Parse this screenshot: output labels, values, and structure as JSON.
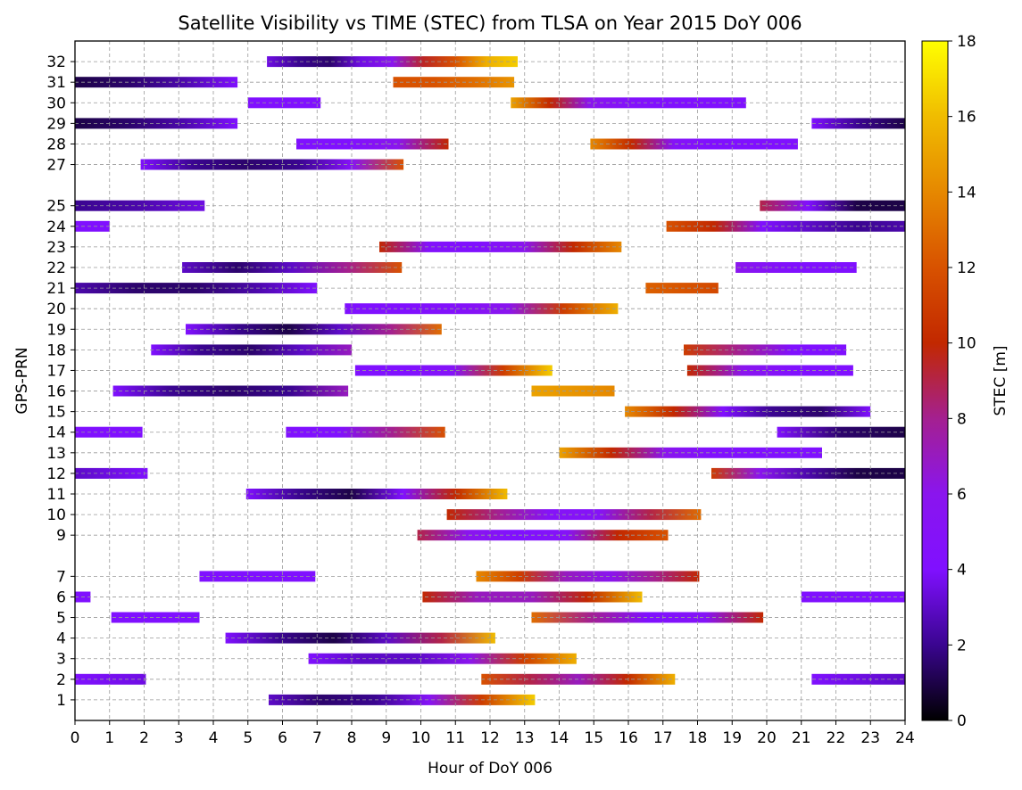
{
  "chart_data": {
    "type": "timeline",
    "title": "Satellite Visibility vs TIME (STEC) from TLSA on Year 2015 DoY 006",
    "xlabel": "Hour of DoY 006",
    "ylabel": "GPS-PRN",
    "xlim": [
      0,
      24
    ],
    "x_ticks": [
      "0",
      "1",
      "2",
      "3",
      "4",
      "5",
      "6",
      "7",
      "8",
      "9",
      "10",
      "11",
      "12",
      "13",
      "14",
      "15",
      "16",
      "17",
      "18",
      "19",
      "20",
      "21",
      "22",
      "23",
      "24"
    ],
    "y_ticks": [
      "1",
      "2",
      "3",
      "4",
      "5",
      "6",
      "7",
      "9",
      "10",
      "11",
      "12",
      "13",
      "14",
      "15",
      "16",
      "17",
      "18",
      "19",
      "20",
      "21",
      "22",
      "23",
      "24",
      "25",
      "27",
      "28",
      "29",
      "30",
      "31",
      "32"
    ],
    "grid": true,
    "colorbar": {
      "label": "STEC [m]",
      "range": [
        0,
        18
      ],
      "ticks": [
        "0",
        "2",
        "4",
        "6",
        "8",
        "10",
        "12",
        "14",
        "16",
        "18"
      ],
      "colormap": "gnuplot",
      "stops": [
        {
          "v": 0,
          "color": "#000000"
        },
        {
          "v": 2,
          "color": "#3a0590"
        },
        {
          "v": 4,
          "color": "#8010ff"
        },
        {
          "v": 6,
          "color": "#8a15ee"
        },
        {
          "v": 8,
          "color": "#a42090"
        },
        {
          "v": 10,
          "color": "#c22800"
        },
        {
          "v": 12,
          "color": "#d85200"
        },
        {
          "v": 14,
          "color": "#e68800"
        },
        {
          "v": 16,
          "color": "#f0bc00"
        },
        {
          "v": 18,
          "color": "#ffff00"
        }
      ]
    },
    "series": [
      {
        "prn": 32,
        "passes": [
          {
            "start": 5.55,
            "end": 12.8,
            "stec": [
              3.5,
              2.0,
              1.5,
              3.5,
              6.0,
              9.5,
              12.0,
              15.5,
              16.5
            ]
          }
        ]
      },
      {
        "prn": 31,
        "passes": [
          {
            "start": 0.0,
            "end": 4.7,
            "stec": [
              1.0,
              1.5,
              2.5,
              4.0
            ]
          },
          {
            "start": 9.2,
            "end": 12.7,
            "stec": [
              12.0,
              12.0,
              13.0,
              14.5
            ]
          }
        ]
      },
      {
        "prn": 30,
        "passes": [
          {
            "start": 5.0,
            "end": 7.1,
            "stec": [
              4.0,
              4.0
            ]
          },
          {
            "start": 12.6,
            "end": 19.4,
            "stec": [
              15.0,
              10.0,
              6.0,
              4.5,
              4.0,
              4.0,
              4.0
            ]
          }
        ]
      },
      {
        "prn": 29,
        "passes": [
          {
            "start": 0.0,
            "end": 4.7,
            "stec": [
              1.0,
              1.5,
              2.5,
              4.0
            ]
          },
          {
            "start": 21.3,
            "end": 24.0,
            "stec": [
              4.0,
              2.0,
              1.0
            ]
          }
        ]
      },
      {
        "prn": 28,
        "passes": [
          {
            "start": 6.4,
            "end": 10.8,
            "stec": [
              4.0,
              4.0,
              6.0,
              10.0
            ]
          },
          {
            "start": 14.9,
            "end": 20.9,
            "stec": [
              14.0,
              10.0,
              5.0,
              4.0,
              4.0,
              4.0
            ]
          }
        ]
      },
      {
        "prn": 27,
        "passes": [
          {
            "start": 1.9,
            "end": 9.5,
            "stec": [
              4.0,
              2.0,
              1.5,
              2.0,
              5.0,
              12.0
            ]
          }
        ]
      },
      {
        "prn": 25,
        "passes": [
          {
            "start": 0.0,
            "end": 3.75,
            "stec": [
              2.0,
              2.5,
              3.5
            ]
          },
          {
            "start": 19.8,
            "end": 24.0,
            "stec": [
              9.0,
              4.0,
              1.0,
              1.0
            ]
          }
        ]
      },
      {
        "prn": 24,
        "passes": [
          {
            "start": 0.0,
            "end": 1.0,
            "stec": [
              4.0,
              4.0
            ]
          },
          {
            "start": 17.1,
            "end": 24.0,
            "stec": [
              12.0,
              10.0,
              4.0,
              3.0,
              2.0,
              2.5
            ]
          }
        ]
      },
      {
        "prn": 23,
        "passes": [
          {
            "start": 8.8,
            "end": 15.8,
            "stec": [
              10.0,
              4.5,
              4.0,
              6.0,
              10.0,
              14.0
            ]
          }
        ]
      },
      {
        "prn": 22,
        "passes": [
          {
            "start": 3.1,
            "end": 9.45,
            "stec": [
              3.0,
              1.5,
              3.0,
              8.0,
              12.0
            ]
          },
          {
            "start": 19.1,
            "end": 22.6,
            "stec": [
              6.0,
              4.0,
              4.0
            ]
          }
        ]
      },
      {
        "prn": 21,
        "passes": [
          {
            "start": 0.0,
            "end": 7.0,
            "stec": [
              2.5,
              1.5,
              1.5,
              2.5,
              4.0
            ]
          },
          {
            "start": 16.5,
            "end": 18.6,
            "stec": [
              12.5,
              11.5
            ]
          }
        ]
      },
      {
        "prn": 20,
        "passes": [
          {
            "start": 7.8,
            "end": 15.7,
            "stec": [
              4.0,
              4.0,
              4.5,
              6.0,
              11.0,
              15.5
            ]
          }
        ]
      },
      {
        "prn": 19,
        "passes": [
          {
            "start": 3.2,
            "end": 10.6,
            "stec": [
              4.0,
              2.0,
              1.0,
              3.0,
              8.0,
              13.0
            ]
          }
        ]
      },
      {
        "prn": 18,
        "passes": [
          {
            "start": 2.2,
            "end": 8.0,
            "stec": [
              4.0,
              2.0,
              1.5,
              3.0,
              7.0
            ]
          },
          {
            "start": 17.6,
            "end": 22.3,
            "stec": [
              11.0,
              8.0,
              4.0,
              4.0
            ]
          }
        ]
      },
      {
        "prn": 17,
        "passes": [
          {
            "start": 8.1,
            "end": 13.8,
            "stec": [
              4.0,
              4.0,
              5.0,
              11.0,
              16.5
            ]
          },
          {
            "start": 17.7,
            "end": 22.5,
            "stec": [
              10.0,
              6.0,
              4.0,
              4.0
            ]
          }
        ]
      },
      {
        "prn": 16,
        "passes": [
          {
            "start": 1.1,
            "end": 7.9,
            "stec": [
              4.0,
              2.0,
              1.5,
              2.0,
              7.0
            ]
          },
          {
            "start": 13.2,
            "end": 15.6,
            "stec": [
              15.0,
              14.0
            ]
          }
        ]
      },
      {
        "prn": 15,
        "passes": [
          {
            "start": 15.9,
            "end": 23.0,
            "stec": [
              14.0,
              10.0,
              4.0,
              2.0,
              1.5,
              4.0
            ]
          }
        ]
      },
      {
        "prn": 14,
        "passes": [
          {
            "start": 0.0,
            "end": 1.95,
            "stec": [
              4.0,
              4.0
            ]
          },
          {
            "start": 6.1,
            "end": 10.7,
            "stec": [
              4.0,
              4.0,
              8.0,
              12.0
            ]
          },
          {
            "start": 20.3,
            "end": 24.0,
            "stec": [
              4.0,
              1.5,
              1.0
            ]
          }
        ]
      },
      {
        "prn": 13,
        "passes": [
          {
            "start": 14.0,
            "end": 21.6,
            "stec": [
              15.0,
              10.0,
              6.0,
              4.0,
              4.0,
              4.0
            ]
          }
        ]
      },
      {
        "prn": 12,
        "passes": [
          {
            "start": 0.0,
            "end": 2.1,
            "stec": [
              3.0,
              4.0
            ]
          },
          {
            "start": 18.4,
            "end": 24.0,
            "stec": [
              11.0,
              6.0,
              2.5,
              1.0,
              1.0
            ]
          }
        ]
      },
      {
        "prn": 11,
        "passes": [
          {
            "start": 4.95,
            "end": 12.5,
            "stec": [
              4.0,
              2.0,
              1.0,
              4.0,
              10.0,
              16.0
            ]
          }
        ]
      },
      {
        "prn": 10,
        "passes": [
          {
            "start": 10.75,
            "end": 18.1,
            "stec": [
              10.0,
              8.0,
              5.0,
              5.0,
              9.0,
              13.0
            ]
          }
        ]
      },
      {
        "prn": 9,
        "passes": [
          {
            "start": 9.9,
            "end": 17.15,
            "stec": [
              9.0,
              6.0,
              4.0,
              5.0,
              10.0,
              12.0
            ]
          }
        ]
      },
      {
        "prn": 7,
        "passes": [
          {
            "start": 3.6,
            "end": 6.95,
            "stec": [
              4.0,
              4.0,
              4.0
            ]
          },
          {
            "start": 11.6,
            "end": 18.05,
            "stec": [
              14.0,
              11.0,
              7.0,
              6.0,
              8.0,
              10.0
            ]
          }
        ]
      },
      {
        "prn": 6,
        "passes": [
          {
            "start": 0.0,
            "end": 0.45,
            "stec": [
              4.0,
              4.0
            ]
          },
          {
            "start": 10.05,
            "end": 16.4,
            "stec": [
              10.0,
              7.0,
              7.0,
              10.0,
              16.0
            ]
          },
          {
            "start": 21.0,
            "end": 24.0,
            "stec": [
              4.0,
              4.0
            ]
          }
        ]
      },
      {
        "prn": 5,
        "passes": [
          {
            "start": 1.05,
            "end": 3.6,
            "stec": [
              4.0,
              4.0
            ]
          },
          {
            "start": 13.2,
            "end": 19.9,
            "stec": [
              13.0,
              8.0,
              4.0,
              5.0,
              10.0
            ]
          }
        ]
      },
      {
        "prn": 4,
        "passes": [
          {
            "start": 4.35,
            "end": 12.15,
            "stec": [
              4.0,
              2.0,
              1.0,
              3.0,
              9.0,
              16.0
            ]
          }
        ]
      },
      {
        "prn": 3,
        "passes": [
          {
            "start": 6.75,
            "end": 14.5,
            "stec": [
              4.0,
              3.0,
              3.0,
              6.0,
              11.0,
              15.5
            ]
          }
        ]
      },
      {
        "prn": 2,
        "passes": [
          {
            "start": 0.0,
            "end": 2.05,
            "stec": [
              4.0,
              3.5
            ]
          },
          {
            "start": 11.75,
            "end": 17.35,
            "stec": [
              12.0,
              9.0,
              7.0,
              10.0,
              15.5
            ]
          },
          {
            "start": 21.3,
            "end": 24.0,
            "stec": [
              4.0,
              3.0
            ]
          }
        ]
      },
      {
        "prn": 1,
        "passes": [
          {
            "start": 5.6,
            "end": 13.3,
            "stec": [
              3.0,
              1.5,
              2.0,
              5.0,
              11.0,
              16.5
            ]
          }
        ]
      }
    ]
  }
}
